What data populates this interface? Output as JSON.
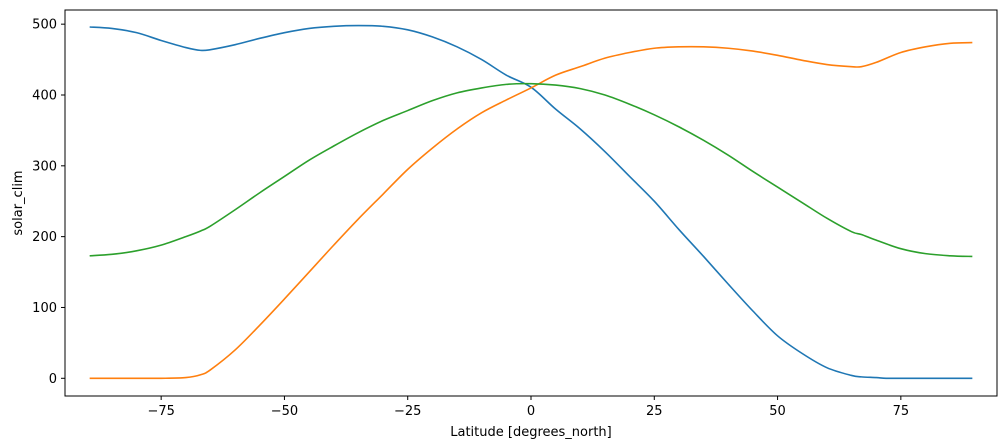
{
  "chart_data": {
    "type": "line",
    "title": "",
    "xlabel": "Latitude [degrees_north]",
    "ylabel": "solar_clim",
    "xlim": [
      -94.5,
      94.5
    ],
    "ylim": [
      -25,
      520
    ],
    "xticks": [
      -75,
      -50,
      -25,
      0,
      25,
      50,
      75
    ],
    "yticks": [
      0,
      100,
      200,
      300,
      400,
      500
    ],
    "grid": false,
    "legend": "none",
    "series": [
      {
        "color": "#1f77b4",
        "x": [
          -89.5,
          -85,
          -80,
          -75,
          -70,
          -67,
          -65,
          -60,
          -55,
          -50,
          -45,
          -40,
          -35,
          -30,
          -25,
          -20,
          -15,
          -10,
          -5,
          0,
          5,
          10,
          15,
          20,
          25,
          30,
          35,
          40,
          45,
          50,
          55,
          60,
          65,
          67,
          70,
          72,
          75,
          80,
          85,
          89.5
        ],
        "y": [
          496,
          494,
          488,
          477,
          467,
          463,
          464,
          471,
          480,
          488,
          494,
          497,
          498,
          497,
          492,
          482,
          468,
          450,
          428,
          411,
          380,
          352,
          320,
          285,
          250,
          210,
          172,
          133,
          95,
          60,
          35,
          15,
          4,
          2,
          1,
          0,
          0,
          0,
          0,
          0
        ]
      },
      {
        "color": "#ff7f0e",
        "x": [
          -89.5,
          -85,
          -80,
          -75,
          -70,
          -67,
          -65,
          -60,
          -55,
          -50,
          -45,
          -40,
          -35,
          -30,
          -25,
          -20,
          -15,
          -10,
          -5,
          0,
          5,
          10,
          15,
          20,
          25,
          30,
          35,
          40,
          45,
          50,
          55,
          60,
          65,
          67,
          70,
          75,
          80,
          85,
          89.5
        ],
        "y": [
          0,
          0,
          0,
          0,
          1,
          5,
          12,
          40,
          75,
          112,
          150,
          188,
          225,
          260,
          295,
          325,
          352,
          375,
          393,
          410,
          428,
          440,
          452,
          460,
          466,
          468,
          468,
          466,
          462,
          456,
          449,
          443,
          440,
          440,
          446,
          460,
          468,
          473,
          474
        ]
      },
      {
        "color": "#2ca02c",
        "x": [
          -89.5,
          -85,
          -80,
          -75,
          -70,
          -67,
          -65,
          -60,
          -55,
          -50,
          -45,
          -40,
          -35,
          -30,
          -25,
          -20,
          -15,
          -10,
          -5,
          0,
          5,
          10,
          15,
          20,
          25,
          30,
          35,
          40,
          45,
          50,
          55,
          60,
          65,
          67,
          70,
          75,
          80,
          85,
          89.5
        ],
        "y": [
          173,
          175,
          180,
          188,
          200,
          208,
          215,
          238,
          262,
          285,
          308,
          328,
          347,
          364,
          378,
          392,
          403,
          410,
          415,
          416,
          414,
          409,
          400,
          387,
          372,
          355,
          336,
          315,
          292,
          270,
          248,
          226,
          207,
          203,
          195,
          183,
          176,
          173,
          172
        ]
      }
    ]
  }
}
